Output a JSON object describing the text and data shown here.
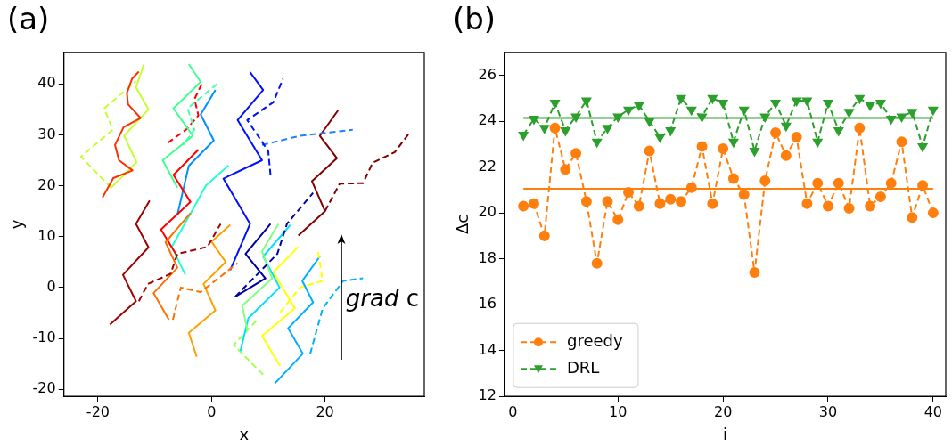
{
  "chart_data": [
    {
      "type": "line",
      "title": "(a)",
      "xlabel": "x",
      "ylabel": "y",
      "xlim": [
        -26,
        37.5
      ],
      "ylim": [
        -21.4,
        46.2
      ],
      "xticks": [
        -20,
        0,
        20
      ],
      "yticks": [
        -20,
        -10,
        0,
        10,
        20,
        30,
        40
      ],
      "marker": "none",
      "legend": false,
      "annotations": [
        "grad c"
      ],
      "series": [
        {
          "color": "#ff3000",
          "line_style": "solid",
          "x": [
            -19.2,
            -17.3,
            -13.9,
            -16.3,
            -17,
            -15.5,
            -12.5,
            -14.7,
            -14.9,
            -14,
            -12.8
          ],
          "values": [
            17.7,
            21.5,
            23,
            25,
            28,
            31.5,
            33.3,
            36,
            38.2,
            41,
            42.4
          ]
        },
        {
          "color": "#c4ff32",
          "line_style": "solid",
          "x": [
            -17.7,
            -13.2,
            -15.4,
            -11.1,
            -13.3,
            -11.9
          ],
          "values": [
            19.6,
            24.6,
            29.8,
            35,
            39.3,
            43.9
          ]
        },
        {
          "color": "#c4ff32",
          "line_style": "dashed",
          "x": [
            -17.7,
            -23,
            -17.4,
            -18.9,
            -13.3
          ],
          "values": [
            19.6,
            25.7,
            31,
            35.2,
            40.5
          ]
        },
        {
          "color": "#a00000",
          "line_style": "solid",
          "x": [
            -17.9,
            -13.3,
            -15.6,
            -11.1,
            -13.3,
            -10.9
          ],
          "values": [
            -7.3,
            -2.7,
            2.5,
            7.9,
            12.5,
            17.1
          ]
        },
        {
          "color": "#a00000",
          "line_style": "dashed",
          "x": [
            -12.8,
            -11.2,
            -7.2,
            -6,
            -0.7,
            1.6
          ],
          "values": [
            -2.7,
            0.7,
            2.7,
            6.6,
            8,
            12.5
          ]
        },
        {
          "color": "#ff7000",
          "line_style": "solid",
          "x": [
            -7.5,
            -10.2,
            -6,
            -8.1,
            -3.7
          ],
          "values": [
            -6.3,
            -1.1,
            3.9,
            8.9,
            14.6
          ]
        },
        {
          "color": "#ff7000",
          "line_style": "dashed",
          "x": [
            -6.8,
            -5.4,
            -1.9,
            4.6
          ],
          "values": [
            -6.3,
            0,
            -0.9,
            4.8
          ]
        },
        {
          "color": "#ffa000",
          "line_style": "solid",
          "x": [
            -2.6,
            -4,
            0.7,
            -1.4,
            2.5,
            0,
            3.3
          ],
          "values": [
            -13.6,
            -8.9,
            -4.5,
            0.7,
            5,
            9,
            12.3
          ]
        },
        {
          "color": "#40ff90",
          "line_style": "solid",
          "x": [
            -4,
            -1.9,
            -6.7,
            -3.3,
            -8.6,
            -6
          ],
          "values": [
            43.9,
            40.4,
            35.2,
            29.8,
            25,
            19.6
          ]
        },
        {
          "color": "#40ffb0",
          "line_style": "dashed",
          "x": [
            1,
            -4.2,
            -3,
            -5
          ],
          "values": [
            40,
            35.2,
            31,
            28
          ]
        },
        {
          "color": "#ff0000",
          "line_style": "solid",
          "x": [
            -2.3,
            -6.7,
            -3.7,
            -8.9,
            -6
          ],
          "values": [
            27.1,
            22.1,
            16.8,
            11.4,
            6.1
          ]
        },
        {
          "color": "#ff0000",
          "line_style": "dashed",
          "x": [
            -7.7,
            -4.5,
            -2.3,
            -3,
            -1.5
          ],
          "values": [
            28.4,
            31,
            33.8,
            37,
            40.5
          ]
        },
        {
          "color": "#20ffd0",
          "line_style": "solid",
          "x": [
            -4.6,
            -7,
            -3.2,
            -1,
            3
          ],
          "values": [
            2.5,
            8,
            15.5,
            20,
            24
          ]
        },
        {
          "color": "#0090ff",
          "line_style": "solid",
          "x": [
            0.7,
            -1.9,
            0.4,
            -4,
            -6
          ],
          "values": [
            38.8,
            34,
            28.9,
            23.9,
            14.3
          ]
        },
        {
          "color": "#0010ff",
          "line_style": "solid",
          "x": [
            6.8,
            9.1,
            4.6,
            8.9,
            2.1,
            6.8,
            3.3
          ],
          "values": [
            42.3,
            38.8,
            32.9,
            25,
            21.4,
            12.5,
            3.4
          ]
        },
        {
          "color": "#0010ff",
          "line_style": "dashed",
          "x": [
            10.4,
            10,
            6.3,
            10.9,
            12.6
          ],
          "values": [
            22.1,
            26.8,
            32.9,
            36.4,
            41
          ]
        },
        {
          "color": "#2080ff",
          "line_style": "dashed",
          "x": [
            8.9,
            15.6,
            24.9
          ],
          "values": [
            28,
            29.8,
            31
          ]
        },
        {
          "color": "#0000a0",
          "line_style": "solid",
          "x": [
            10.4,
            6,
            9.5,
            4.2
          ],
          "values": [
            12.5,
            6.6,
            1.8,
            -1.8
          ]
        },
        {
          "color": "#0000a0",
          "line_style": "dashed",
          "x": [
            4.2,
            11.6,
            13.3,
            17.9
          ],
          "values": [
            -1.8,
            6.6,
            12.5,
            18.6
          ]
        },
        {
          "color": "#80ff80",
          "line_style": "solid",
          "x": [
            11.8,
            8.9,
            10.7,
            5.4,
            6.3
          ],
          "values": [
            12.5,
            7.1,
            1.8,
            -3.6,
            -8.2
          ]
        },
        {
          "color": "#00e0ff",
          "line_style": "solid",
          "x": [
            13.9,
            9.1,
            12,
            6.5,
            5.1
          ],
          "values": [
            12.3,
            6.1,
            0,
            -6,
            -12.5
          ]
        },
        {
          "color": "#ffff00",
          "line_style": "solid",
          "x": [
            15.3,
            10.9,
            14.7,
            8.9,
            12.1
          ],
          "values": [
            8,
            3,
            -4.1,
            -9.5,
            -15.4
          ]
        },
        {
          "color": "#ffff00",
          "line_style": "dashed",
          "x": [
            18.8,
            19.6,
            15.6,
            12
          ],
          "values": [
            7,
            1.3,
            0,
            -5
          ]
        },
        {
          "color": "#00b0ff",
          "line_style": "solid",
          "x": [
            19.1,
            16,
            17.9,
            13.5,
            16.1,
            11.2
          ],
          "values": [
            6.1,
            1.3,
            -2.9,
            -8,
            -13,
            -18.8
          ]
        },
        {
          "color": "#00b0ff",
          "line_style": "dashed",
          "x": [
            17.4,
            19.6,
            23.2,
            26.7
          ],
          "values": [
            -13,
            -4.1,
            1.3,
            1.8
          ]
        },
        {
          "color": "#a0ff50",
          "line_style": "dashed",
          "x": [
            9.1,
            3.9,
            8.1
          ],
          "values": [
            -17.1,
            -11.3,
            -6.3
          ]
        },
        {
          "color": "#800000",
          "line_style": "solid",
          "x": [
            22.3,
            19.1,
            22.1,
            17.7,
            20,
            15.3
          ],
          "values": [
            34.8,
            29.8,
            25.4,
            20.9,
            15,
            10.2
          ]
        },
        {
          "color": "#800000",
          "line_style": "dashed",
          "x": [
            20,
            22.6,
            26.7,
            28.4,
            32.3,
            34.9
          ],
          "values": [
            15,
            20.4,
            20.5,
            24.5,
            26.6,
            30.4
          ]
        }
      ]
    },
    {
      "type": "line",
      "title": "(b)",
      "xlabel": "i",
      "ylabel": "Δc",
      "xlim": [
        -0.8,
        41.2
      ],
      "ylim": [
        12,
        27
      ],
      "xticks": [
        0,
        10,
        20,
        30,
        40
      ],
      "yticks": [
        12,
        14,
        16,
        18,
        20,
        22,
        24,
        26
      ],
      "legend": "bottom left",
      "x": [
        1,
        2,
        3,
        4,
        5,
        6,
        7,
        8,
        9,
        10,
        11,
        12,
        13,
        14,
        15,
        16,
        17,
        18,
        19,
        20,
        21,
        22,
        23,
        24,
        25,
        26,
        27,
        28,
        29,
        30,
        31,
        32,
        33,
        34,
        35,
        36,
        37,
        38,
        39,
        40
      ],
      "series": [
        {
          "name": "greedy",
          "color": "#ff7f0e",
          "line_style": "dashed",
          "marker": "circle",
          "values": [
            20.3,
            20.4,
            19.0,
            23.7,
            21.9,
            22.6,
            20.5,
            17.8,
            20.5,
            19.7,
            20.9,
            20.3,
            22.7,
            20.4,
            20.6,
            20.5,
            21.1,
            22.9,
            20.4,
            22.8,
            21.5,
            20.8,
            17.4,
            21.4,
            23.5,
            22.5,
            23.3,
            20.4,
            21.3,
            20.3,
            21.3,
            20.2,
            23.7,
            20.3,
            20.7,
            21.3,
            23.1,
            19.8,
            21.2,
            20.0
          ]
        },
        {
          "name": "DRL",
          "color": "#2ca02c",
          "line_style": "dashed",
          "marker": "triangle",
          "values": [
            23.4,
            24.1,
            23.7,
            24.8,
            23.6,
            24.2,
            24.9,
            23.1,
            23.7,
            24.2,
            24.5,
            24.7,
            24.0,
            23.3,
            23.6,
            25.0,
            24.5,
            24.2,
            25.0,
            24.8,
            23.1,
            24.5,
            22.7,
            24.2,
            24.8,
            23.8,
            24.9,
            24.9,
            23.1,
            24.8,
            23.6,
            24.4,
            25.0,
            24.7,
            24.8,
            24.1,
            24.2,
            24.4,
            22.9,
            24.5
          ]
        },
        {
          "color": "#ff7f0e",
          "line_style": "solid",
          "marker": "none",
          "x": [
            1,
            40
          ],
          "values": [
            21.05,
            21.05
          ]
        },
        {
          "color": "#2ca02c",
          "line_style": "solid",
          "marker": "none",
          "x": [
            1,
            40
          ],
          "values": [
            24.14,
            24.14
          ]
        }
      ]
    }
  ]
}
